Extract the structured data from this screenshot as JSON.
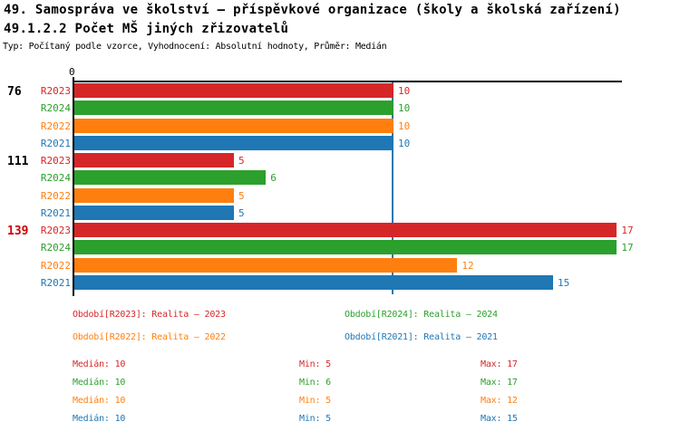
{
  "header": {
    "title_line1": "49. Samospráva ve školství – příspěvkové organizace (školy a školská zařízení)",
    "title_line2": "49.1.2.2 Počet MŠ jiných zřizovatelů",
    "meta_line": "Typ: Počítaný podle vzorce, Vyhodnocení: Absolutní hodnoty, Průměr: Medián"
  },
  "chart_data": {
    "type": "bar",
    "orientation": "horizontal",
    "axis_origin_label": "0",
    "xlim": [
      0,
      17.2
    ],
    "grid": false,
    "median_line_value": 10,
    "median_line_color": "#2878b0",
    "categories": [
      "76",
      "111",
      "139"
    ],
    "category_label_colors": [
      "#000000",
      "#000000",
      "#cc0000"
    ],
    "bar_order": [
      "R2023",
      "R2024",
      "R2022",
      "R2021"
    ],
    "series": [
      {
        "name": "R2023",
        "color": "#d62728",
        "values": [
          10,
          5,
          17
        ]
      },
      {
        "name": "R2024",
        "color": "#2ca02c",
        "values": [
          10,
          6,
          17
        ]
      },
      {
        "name": "R2022",
        "color": "#ff7f0e",
        "values": [
          10,
          5,
          12
        ]
      },
      {
        "name": "R2021",
        "color": "#1f77b4",
        "values": [
          10,
          5,
          15
        ]
      }
    ]
  },
  "legend": {
    "items": [
      {
        "label": "Období[R2023]: Realita – 2023",
        "color": "#d62728"
      },
      {
        "label": "Období[R2024]: Realita – 2024",
        "color": "#2ca02c"
      },
      {
        "label": "Období[R2022]: Realita – 2022",
        "color": "#ff7f0e"
      },
      {
        "label": "Období[R2021]: Realita – 2021",
        "color": "#1f77b4"
      }
    ]
  },
  "stats": {
    "rows": [
      {
        "color": "#d62728",
        "median": "Medián: 10",
        "min": "Min: 5",
        "max": "Max: 17"
      },
      {
        "color": "#2ca02c",
        "median": "Medián: 10",
        "min": "Min: 6",
        "max": "Max: 17"
      },
      {
        "color": "#ff7f0e",
        "median": "Medián: 10",
        "min": "Min: 5",
        "max": "Max: 12"
      },
      {
        "color": "#1f77b4",
        "median": "Medián: 10",
        "min": "Min: 5",
        "max": "Max: 15"
      }
    ]
  }
}
